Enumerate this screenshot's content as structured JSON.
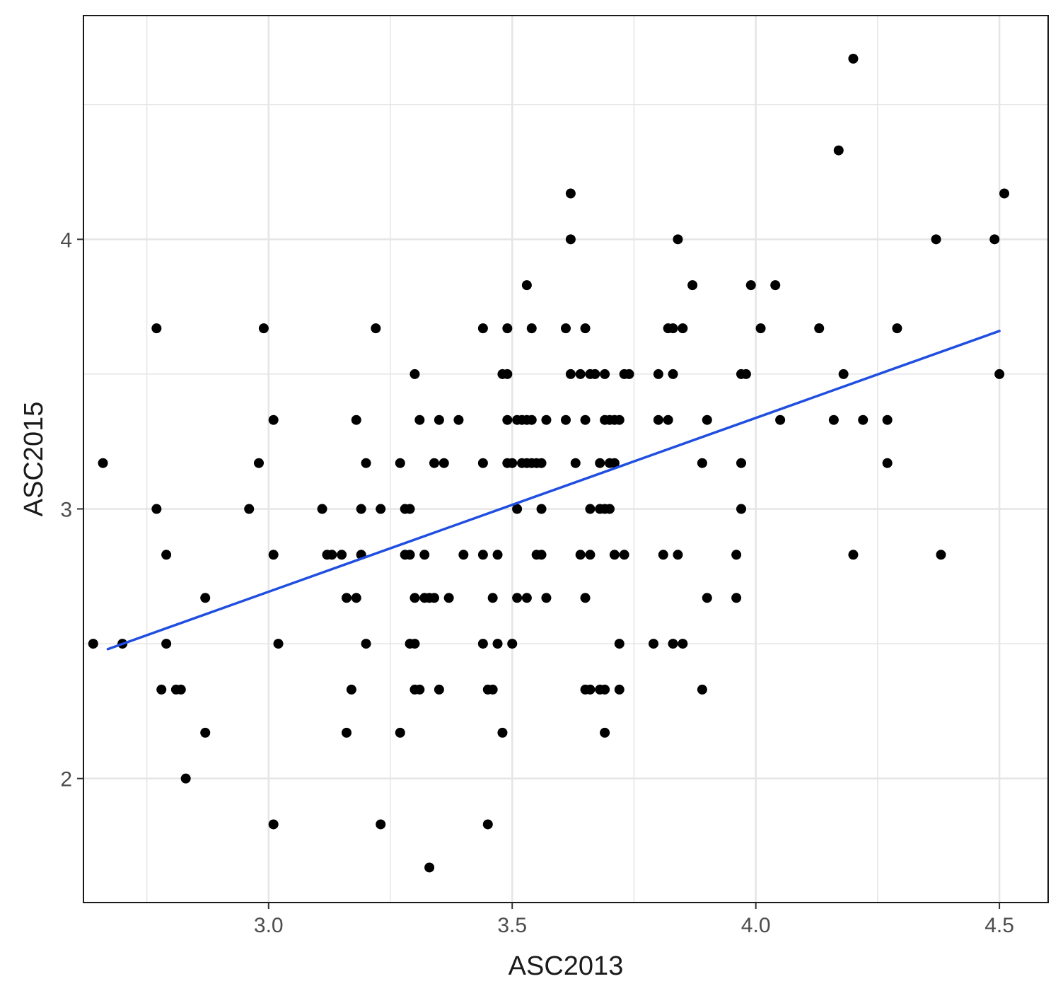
{
  "chart_data": {
    "type": "scatter",
    "title": "",
    "xlabel": "ASC2013",
    "ylabel": "ASC2015",
    "xlim": [
      2.62,
      4.6
    ],
    "ylim": [
      1.54,
      4.83
    ],
    "x_ticks": [
      3.0,
      3.5,
      4.0,
      4.5
    ],
    "x_tick_labels": [
      "3.0",
      "3.5",
      "4.0",
      "4.5"
    ],
    "y_ticks": [
      2,
      3,
      4
    ],
    "y_tick_labels": [
      "2",
      "3",
      "4"
    ],
    "grid": true,
    "legend": "none",
    "colors": {
      "points": "#000000",
      "fit_line": "#1f4ee0",
      "grid": "#e5e5e5",
      "panel_border": "#1a1a1a"
    },
    "fit_line": {
      "x": [
        2.67,
        4.5
      ],
      "y": [
        2.48,
        3.66
      ]
    },
    "points": [
      [
        2.64,
        2.5
      ],
      [
        2.66,
        3.17
      ],
      [
        2.7,
        2.5
      ],
      [
        2.77,
        3.67
      ],
      [
        2.77,
        3.0
      ],
      [
        2.79,
        2.83
      ],
      [
        2.79,
        2.5
      ],
      [
        2.78,
        2.33
      ],
      [
        2.81,
        2.33
      ],
      [
        2.82,
        2.33
      ],
      [
        2.83,
        2.0
      ],
      [
        2.87,
        2.67
      ],
      [
        2.87,
        2.17
      ],
      [
        2.96,
        3.0
      ],
      [
        2.98,
        3.17
      ],
      [
        2.99,
        3.67
      ],
      [
        3.01,
        3.33
      ],
      [
        3.01,
        2.83
      ],
      [
        3.02,
        2.5
      ],
      [
        3.01,
        1.83
      ],
      [
        3.11,
        3.0
      ],
      [
        3.12,
        2.83
      ],
      [
        3.13,
        2.83
      ],
      [
        3.15,
        2.83
      ],
      [
        3.16,
        2.17
      ],
      [
        3.16,
        2.67
      ],
      [
        3.17,
        2.33
      ],
      [
        3.18,
        2.67
      ],
      [
        3.18,
        3.33
      ],
      [
        3.19,
        3.0
      ],
      [
        3.19,
        2.83
      ],
      [
        3.2,
        3.17
      ],
      [
        3.2,
        2.5
      ],
      [
        3.22,
        3.67
      ],
      [
        3.23,
        3.0
      ],
      [
        3.23,
        1.83
      ],
      [
        3.27,
        3.17
      ],
      [
        3.27,
        2.17
      ],
      [
        3.28,
        2.83
      ],
      [
        3.28,
        3.0
      ],
      [
        3.29,
        2.83
      ],
      [
        3.29,
        3.0
      ],
      [
        3.29,
        2.5
      ],
      [
        3.3,
        2.5
      ],
      [
        3.3,
        2.67
      ],
      [
        3.3,
        2.33
      ],
      [
        3.3,
        3.5
      ],
      [
        3.31,
        3.33
      ],
      [
        3.31,
        2.33
      ],
      [
        3.32,
        2.67
      ],
      [
        3.32,
        2.83
      ],
      [
        3.33,
        2.67
      ],
      [
        3.33,
        1.67
      ],
      [
        3.34,
        2.67
      ],
      [
        3.34,
        3.17
      ],
      [
        3.35,
        3.33
      ],
      [
        3.35,
        2.33
      ],
      [
        3.36,
        3.17
      ],
      [
        3.37,
        2.67
      ],
      [
        3.39,
        3.33
      ],
      [
        3.4,
        2.83
      ],
      [
        3.44,
        2.83
      ],
      [
        3.44,
        2.5
      ],
      [
        3.44,
        3.17
      ],
      [
        3.44,
        3.67
      ],
      [
        3.45,
        2.33
      ],
      [
        3.45,
        1.83
      ],
      [
        3.46,
        2.33
      ],
      [
        3.46,
        2.67
      ],
      [
        3.47,
        2.5
      ],
      [
        3.47,
        2.83
      ],
      [
        3.48,
        2.17
      ],
      [
        3.48,
        3.5
      ],
      [
        3.49,
        3.5
      ],
      [
        3.49,
        3.17
      ],
      [
        3.49,
        3.67
      ],
      [
        3.49,
        3.33
      ],
      [
        3.5,
        3.17
      ],
      [
        3.5,
        2.5
      ],
      [
        3.51,
        3.0
      ],
      [
        3.51,
        2.67
      ],
      [
        3.51,
        3.33
      ],
      [
        3.52,
        3.17
      ],
      [
        3.52,
        3.33
      ],
      [
        3.53,
        3.33
      ],
      [
        3.53,
        3.17
      ],
      [
        3.53,
        3.83
      ],
      [
        3.53,
        2.67
      ],
      [
        3.54,
        3.33
      ],
      [
        3.54,
        3.17
      ],
      [
        3.54,
        3.67
      ],
      [
        3.55,
        2.83
      ],
      [
        3.55,
        3.17
      ],
      [
        3.56,
        3.0
      ],
      [
        3.56,
        3.17
      ],
      [
        3.56,
        2.83
      ],
      [
        3.57,
        3.33
      ],
      [
        3.57,
        2.67
      ],
      [
        3.61,
        3.67
      ],
      [
        3.61,
        3.33
      ],
      [
        3.62,
        4.17
      ],
      [
        3.62,
        4.0
      ],
      [
        3.62,
        3.5
      ],
      [
        3.63,
        3.17
      ],
      [
        3.64,
        2.83
      ],
      [
        3.64,
        3.5
      ],
      [
        3.65,
        3.33
      ],
      [
        3.65,
        3.67
      ],
      [
        3.65,
        2.67
      ],
      [
        3.65,
        2.33
      ],
      [
        3.66,
        3.0
      ],
      [
        3.66,
        3.5
      ],
      [
        3.66,
        2.83
      ],
      [
        3.66,
        2.33
      ],
      [
        3.67,
        3.5
      ],
      [
        3.68,
        3.17
      ],
      [
        3.68,
        2.33
      ],
      [
        3.68,
        3.0
      ],
      [
        3.69,
        3.33
      ],
      [
        3.69,
        2.33
      ],
      [
        3.69,
        3.0
      ],
      [
        3.69,
        3.5
      ],
      [
        3.69,
        2.17
      ],
      [
        3.7,
        3.17
      ],
      [
        3.7,
        3.0
      ],
      [
        3.7,
        3.33
      ],
      [
        3.71,
        2.83
      ],
      [
        3.71,
        3.17
      ],
      [
        3.71,
        3.33
      ],
      [
        3.72,
        3.33
      ],
      [
        3.72,
        2.5
      ],
      [
        3.72,
        2.33
      ],
      [
        3.73,
        3.5
      ],
      [
        3.73,
        2.83
      ],
      [
        3.74,
        3.5
      ],
      [
        3.79,
        2.5
      ],
      [
        3.8,
        3.33
      ],
      [
        3.8,
        3.5
      ],
      [
        3.81,
        2.83
      ],
      [
        3.82,
        3.33
      ],
      [
        3.82,
        3.67
      ],
      [
        3.83,
        3.5
      ],
      [
        3.83,
        3.67
      ],
      [
        3.83,
        2.5
      ],
      [
        3.84,
        4.0
      ],
      [
        3.84,
        2.83
      ],
      [
        3.85,
        3.67
      ],
      [
        3.85,
        2.5
      ],
      [
        3.87,
        3.83
      ],
      [
        3.89,
        3.17
      ],
      [
        3.89,
        2.33
      ],
      [
        3.9,
        3.33
      ],
      [
        3.9,
        2.67
      ],
      [
        3.96,
        2.67
      ],
      [
        3.96,
        2.83
      ],
      [
        3.97,
        3.17
      ],
      [
        3.97,
        3.5
      ],
      [
        3.97,
        3.0
      ],
      [
        3.98,
        3.5
      ],
      [
        3.99,
        3.83
      ],
      [
        4.01,
        3.67
      ],
      [
        4.04,
        3.83
      ],
      [
        4.05,
        3.33
      ],
      [
        4.13,
        3.67
      ],
      [
        4.16,
        3.33
      ],
      [
        4.17,
        4.33
      ],
      [
        4.18,
        3.5
      ],
      [
        4.2,
        4.67
      ],
      [
        4.2,
        2.83
      ],
      [
        4.22,
        3.33
      ],
      [
        4.27,
        3.33
      ],
      [
        4.27,
        3.17
      ],
      [
        4.29,
        3.67
      ],
      [
        4.37,
        4.0
      ],
      [
        4.38,
        2.83
      ],
      [
        4.49,
        4.0
      ],
      [
        4.5,
        3.5
      ],
      [
        4.51,
        4.17
      ]
    ]
  }
}
